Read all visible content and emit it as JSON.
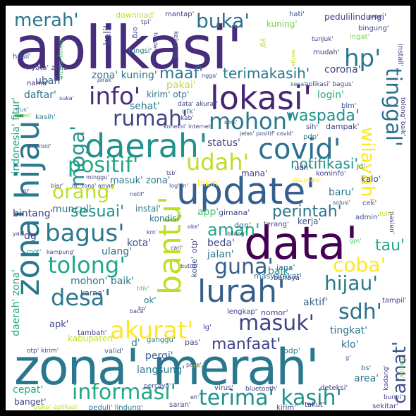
{
  "palette": {
    "background": "#ffffff",
    "frame": "#000000",
    "colors": [
      "#440154",
      "#482475",
      "#414487",
      "#355f8d",
      "#2a788e",
      "#21918c",
      "#22a884",
      "#44bf70",
      "#7ad151",
      "#bddf26",
      "#fde725"
    ]
  },
  "words": [
    {
      "text": "aplikasi'",
      "color": "#472d7b"
    },
    {
      "text": "zona' merah'",
      "color": "#2a788e"
    },
    {
      "text": "update'",
      "color": "#355f8d"
    },
    {
      "text": "data'",
      "color": "#440154"
    },
    {
      "text": "lokasi'",
      "color": "#482475"
    },
    {
      "text": "daerah'",
      "color": "#21918c"
    },
    {
      "text": "zona' hijau'",
      "color": "#2a788e"
    },
    {
      "text": "bantu'",
      "color": "#bddf26"
    },
    {
      "text": "covid'",
      "color": "#2c728e"
    },
    {
      "text": "lurah'",
      "color": "#355f8d"
    },
    {
      "text": "terima' kasih'",
      "color": "#21918c"
    },
    {
      "text": "informasi'",
      "color": "#22a884"
    },
    {
      "text": "akurat'",
      "color": "#fde725"
    },
    {
      "text": "merah'",
      "color": "#2a788e"
    },
    {
      "text": "buka'",
      "color": "#2c728e"
    },
    {
      "text": "hp'",
      "color": "#2a788e"
    },
    {
      "text": "info'",
      "color": "#472d7b"
    },
    {
      "text": "rumah'",
      "color": "#414487"
    },
    {
      "text": "mohon'",
      "color": "#2a788e"
    },
    {
      "text": "positif'",
      "color": "#22a884"
    },
    {
      "text": "udah'",
      "color": "#bddf26"
    },
    {
      "text": "bagus'",
      "color": "#2a788e"
    },
    {
      "text": "tolong'",
      "color": "#22a884"
    },
    {
      "text": "desa'",
      "color": "#2a788e"
    },
    {
      "text": "guna'",
      "color": "#355f8d"
    },
    {
      "text": "coba'",
      "color": "#fde725"
    },
    {
      "text": "hijau'",
      "color": "#2a788e"
    },
    {
      "text": "masuk'",
      "color": "#414487"
    },
    {
      "text": "sdh'",
      "color": "#2c728e"
    },
    {
      "text": "orang'",
      "color": "#bddf26"
    },
    {
      "text": "moga'",
      "color": "#21918c"
    },
    {
      "text": "tinggal'",
      "color": "#2c728e"
    },
    {
      "text": "wilayah'",
      "color": "#fde725"
    },
    {
      "text": "camat'",
      "color": "#3b528b"
    },
    {
      "text": "maaf'",
      "color": "#2a788e"
    },
    {
      "text": "terimakasih'",
      "color": "#2a788e"
    },
    {
      "text": "waspada'",
      "color": "#21918c"
    },
    {
      "text": "notifikasi'",
      "color": "#21918c"
    },
    {
      "text": "perintah'",
      "color": "#2c728e"
    },
    {
      "text": "sesuai'",
      "color": "#21918c"
    },
    {
      "text": "aman'",
      "color": "#22a884"
    },
    {
      "text": "tau'",
      "color": "#22a884"
    },
    {
      "text": "manfaat'",
      "color": "#414487"
    },
    {
      "text": "kuning'",
      "color": "#7ad151"
    },
    {
      "text": "pedulilindungi'",
      "color": "#414487"
    },
    {
      "text": "tolong' bantu'",
      "color": "#44bf70"
    },
    {
      "text": "corona'",
      "color": "#414487"
    },
    {
      "text": "daftar'",
      "color": "#2c728e"
    },
    {
      "text": "login'",
      "color": "#22a884"
    },
    {
      "text": "bintang'",
      "color": "#414487"
    },
    {
      "text": "muncul'",
      "color": "#2a788e"
    },
    {
      "text": "app'",
      "color": "#44bf70"
    },
    {
      "text": "kota'",
      "color": "#3b528b"
    },
    {
      "text": "beda'",
      "color": "#414487"
    },
    {
      "text": "baru'",
      "color": "#2a788e"
    },
    {
      "text": "kerja'",
      "color": "#3b528b"
    },
    {
      "text": "jalan'",
      "color": "#2a788e"
    },
    {
      "text": "baik'",
      "color": "#21918c"
    },
    {
      "text": "aktif'",
      "color": "#355f8d"
    },
    {
      "text": "tingkat'",
      "color": "#2c728e"
    },
    {
      "text": "klo'",
      "color": "#2c728e"
    },
    {
      "text": "langsung'",
      "color": "#2a788e"
    },
    {
      "text": "kabupaten'",
      "color": "#bddf26"
    },
    {
      "text": "pergi'",
      "color": "#355f8d"
    },
    {
      "text": "cepat'",
      "color": "#22a884"
    },
    {
      "text": "banget'",
      "color": "#414487"
    },
    {
      "text": "area'",
      "color": "#2a788e"
    },
    {
      "text": "mohon' baik'",
      "color": "#2a788e"
    },
    {
      "text": "ulang'",
      "color": "#2c728e"
    },
    {
      "text": "pakai'",
      "color": "#bddf26"
    },
    {
      "text": "kirim' otp'",
      "color": "#2c728e"
    },
    {
      "text": "sehat'",
      "color": "#2a788e"
    },
    {
      "text": "status'",
      "color": "#414487"
    },
    {
      "text": "bikin'",
      "color": "#fde725"
    },
    {
      "text": "masuk' zona'",
      "color": "#2a788e"
    },
    {
      "text": "zona' kuning'",
      "color": "#2a788e"
    },
    {
      "text": "ubah'",
      "color": "#355f8d"
    },
    {
      "text": "kali'",
      "color": "#414487"
    },
    {
      "text": "fungsi'",
      "color": "#2a788e"
    },
    {
      "text": "download'",
      "color": "#bddf26"
    },
    {
      "text": "mantap'",
      "color": "#414487"
    },
    {
      "text": "hati'",
      "color": "#3b528b"
    },
    {
      "text": "bingung'",
      "color": "#414487"
    },
    {
      "text": "ingat'",
      "color": "#7ad151"
    },
    {
      "text": "mudah'",
      "color": "#414487"
    },
    {
      "text": "install'",
      "color": "#414487"
    },
    {
      "text": "hasil'",
      "color": "#3b528b"
    },
    {
      "text": "nyata' zona'",
      "color": "#414487"
    },
    {
      "text": "nama'",
      "color": "#482475"
    },
    {
      "text": "kasih'",
      "color": "#2a788e"
    },
    {
      "text": "indonesia' fitur'",
      "color": "#22a884"
    },
    {
      "text": "daerah' zona'",
      "color": "#22a884"
    },
    {
      "text": "dg'",
      "color": "#414487"
    },
    {
      "text": "apk'",
      "color": "#414487"
    },
    {
      "text": "karna'",
      "color": "#355f8d"
    },
    {
      "text": "kondisi'",
      "color": "#2a788e"
    },
    {
      "text": "instal'",
      "color": "#2a788e"
    },
    {
      "text": "gimana'",
      "color": "#414487"
    },
    {
      "text": "dgn'",
      "color": "#2c728e"
    },
    {
      "text": "terang'",
      "color": "#414487"
    },
    {
      "text": "admin'",
      "color": "#3b528b"
    },
    {
      "text": "kalo'",
      "color": "#3b528b"
    },
    {
      "text": "mana'",
      "color": "#414487"
    },
    {
      "text": "kominfo'",
      "color": "#414487"
    },
    {
      "text": "sih'",
      "color": "#414487"
    },
    {
      "text": "dampak'",
      "color": "#414487"
    },
    {
      "text": "pdp'",
      "color": "#2a788e"
    },
    {
      "text": "jd'",
      "color": "#2a788e"
    },
    {
      "text": "udh'",
      "color": "#414487"
    },
    {
      "text": "masyarakat'",
      "color": "#2a788e"
    },
    {
      "text": "bahaya'",
      "color": "#414487"
    },
    {
      "text": "jaga'",
      "color": "#2c728e"
    },
    {
      "text": "nomor'",
      "color": "#414487"
    },
    {
      "text": "lengkap'",
      "color": "#414487"
    },
    {
      "text": "ganggu'",
      "color": "#2a788e"
    },
    {
      "text": "pas'",
      "color": "#414487"
    },
    {
      "text": "odp'",
      "color": "#2a788e"
    },
    {
      "text": "tambah'",
      "color": "#414487"
    },
    {
      "text": "valid'",
      "color": "#355f8d"
    },
    {
      "text": "otp' kirim'",
      "color": "#414487"
    },
    {
      "text": "virus'",
      "color": "#414487"
    },
    {
      "text": "bluetooth'",
      "color": "#414487"
    },
    {
      "text": "deteksi'",
      "color": "#414487"
    },
    {
      "text": "percaya'",
      "color": "#414487"
    },
    {
      "text": "saran'",
      "color": "#414487"
    },
    {
      "text": "kirim'",
      "color": "#414487"
    },
    {
      "text": "takut'",
      "color": "#414487"
    },
    {
      "text": "sekitar'",
      "color": "#414487"
    },
    {
      "text": "buka' aplikasi'",
      "color": "#bddf26"
    },
    {
      "text": "peduli' lindung'",
      "color": "#2a788e"
    },
    {
      "text": "kadang'",
      "color": "#414487"
    },
    {
      "text": "bs'",
      "color": "#2a788e"
    },
    {
      "text": "berita'",
      "color": "#7ad151"
    },
    {
      "text": "bunyi'",
      "color": "#414487"
    },
    {
      "text": "tampil'",
      "color": "#414487"
    },
    {
      "text": "pasien'",
      "color": "#414487"
    },
    {
      "text": "tulis'",
      "color": "#bddf26"
    },
    {
      "text": "solusi'",
      "color": "#414487"
    },
    {
      "text": "cek'",
      "color": "#3b528b"
    },
    {
      "text": "kode'",
      "color": "#3b528b"
    },
    {
      "text": "otp'",
      "color": "#414487"
    },
    {
      "text": "ok'",
      "color": "#2a788e"
    },
    {
      "text": "lg'",
      "color": "#414487"
    },
    {
      "text": "d'",
      "color": "#2a788e"
    },
    {
      "text": "root'",
      "color": "#21918c"
    },
    {
      "text": "kampung'",
      "color": "#414487"
    },
    {
      "text": "gps'",
      "color": "#44bf70"
    },
    {
      "text": "yg'",
      "color": "#bddf26"
    },
    {
      "text": "org'",
      "color": "#414487"
    },
    {
      "text": "keluarga'",
      "color": "#3b528b"
    },
    {
      "text": "tunjuk'",
      "color": "#414487"
    },
    {
      "text": "peta'",
      "color": "#414487"
    },
    {
      "text": "aplikasi' bagus'",
      "color": "#414487"
    },
    {
      "text": "kena'",
      "color": "#2a788e"
    },
    {
      "text": "ngga'",
      "color": "#414487"
    },
    {
      "text": "suka'",
      "color": "#414487"
    },
    {
      "text": "trus'",
      "color": "#2a788e"
    },
    {
      "text": "akses'",
      "color": "#7ad151"
    },
    {
      "text": "jarak'",
      "color": "#414487"
    },
    {
      "text": "blm'",
      "color": "#3b528b"
    },
    {
      "text": "tolong' baik'",
      "color": "#414487"
    },
    {
      "text": "utk'",
      "color": "#2a788e"
    },
    {
      "text": "kab'",
      "color": "#414487"
    },
    {
      "text": "sms'",
      "color": "#414487"
    },
    {
      "text": "jelas' positif' covid'",
      "color": "#414487"
    },
    {
      "text": "koneksi' internet'",
      "color": "#414487"
    },
    {
      "text": "android'",
      "color": "#414487"
    },
    {
      "text": "minggu'",
      "color": "#414487"
    },
    {
      "text": "tsb'",
      "color": "#414487"
    },
    {
      "text": "biar'",
      "color": "#414487"
    },
    {
      "text": "dr' zona' aman'",
      "color": "#414487"
    },
    {
      "text": "log' in'",
      "color": "#414487"
    },
    {
      "text": "notif'",
      "color": "#414487"
    },
    {
      "text": "oke'",
      "color": "#414487"
    },
    {
      "text": "cari'",
      "color": "#414487"
    },
    {
      "text": "bilang'",
      "color": "#414487"
    },
    {
      "text": "butuh'",
      "color": "#414487"
    },
    {
      "text": "titik'",
      "color": "#44bf70"
    },
    {
      "text": "baca'",
      "color": "#414487"
    },
    {
      "text": "ko'",
      "color": "#414487"
    },
    {
      "text": "pake'",
      "color": "#414487"
    },
    {
      "text": "eh'",
      "color": "#414487"
    },
    {
      "text": "g'",
      "color": "#414487"
    },
    {
      "text": "hindar'",
      "color": "#414487"
    },
    {
      "text": "warga'",
      "color": "#bddf26"
    },
    {
      "text": "tpi'",
      "color": "#414487"
    },
    {
      "text": "dll'",
      "color": "#414487"
    },
    {
      "text": "yaa'",
      "color": "#414487"
    },
    {
      "text": "disupdate'",
      "color": "#fde725"
    },
    {
      "text": "krn'",
      "color": "#414487"
    },
    {
      "text": "min'",
      "color": "#bddf26"
    },
    {
      "text": "data' akurat'",
      "color": "#414487"
    }
  ]
}
